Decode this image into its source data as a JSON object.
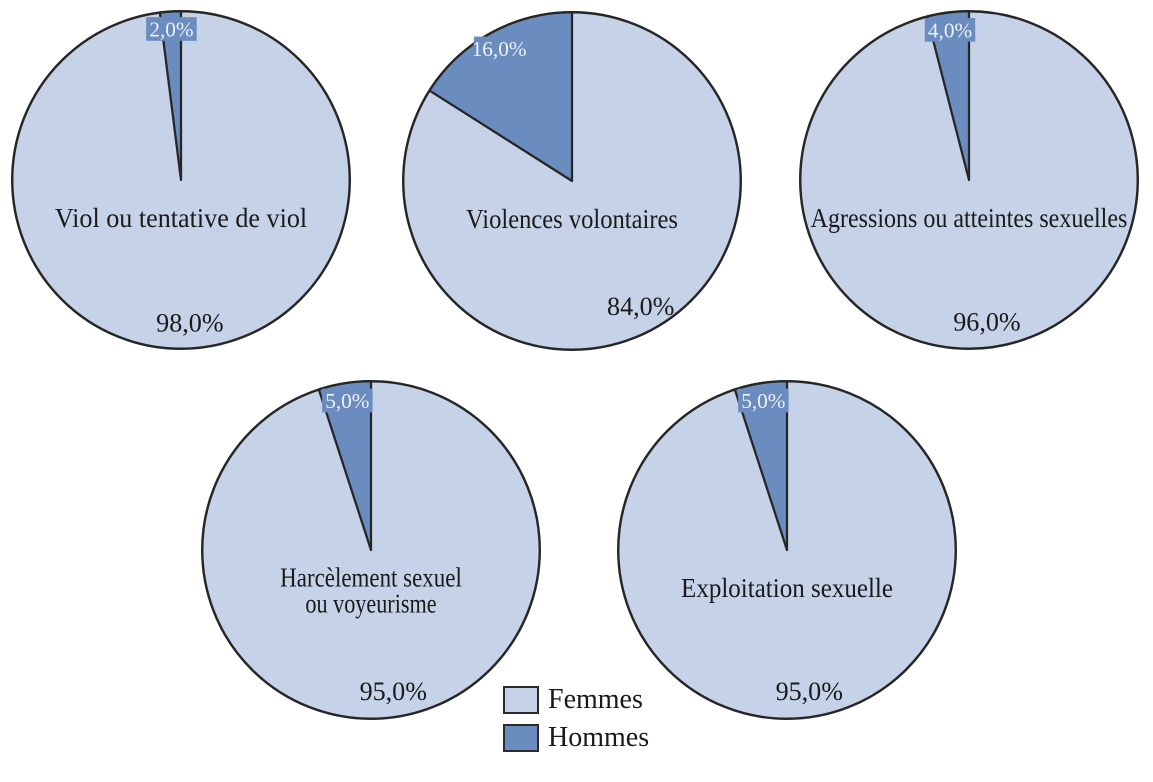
{
  "chart_data": {
    "type": "pie",
    "layout": "grid of 5 pies (3 top, 2 bottom), legend bottom-center",
    "colors": {
      "femmes_fill": "#c5d2e8",
      "hommes_fill": "#6b8cbe",
      "outline": "#262626",
      "value_text": "#1a1a1a",
      "small_label_text": "#eef2f9"
    },
    "legend": {
      "position": "bottom-center",
      "items": [
        {
          "label": "Femmes",
          "color": "#c5d2e8"
        },
        {
          "label": "Hommes",
          "color": "#6b8cbe"
        }
      ]
    },
    "pies": [
      {
        "title": "Viol ou tentative de viol",
        "title_lines": [
          "Viol ou tentative de viol"
        ],
        "series": [
          {
            "name": "Femmes",
            "value": 98.0,
            "label": "98,0%"
          },
          {
            "name": "Hommes",
            "value": 2.0,
            "label": "2,0%"
          }
        ]
      },
      {
        "title": "Violences volontaires",
        "title_lines": [
          "Violences volontaires"
        ],
        "series": [
          {
            "name": "Femmes",
            "value": 84.0,
            "label": "84,0%"
          },
          {
            "name": "Hommes",
            "value": 16.0,
            "label": "16,0%"
          }
        ]
      },
      {
        "title": "Agressions ou atteintes sexuelles",
        "title_lines": [
          "Agressions ou atteintes sexuelles"
        ],
        "series": [
          {
            "name": "Femmes",
            "value": 96.0,
            "label": "96,0%"
          },
          {
            "name": "Hommes",
            "value": 4.0,
            "label": "4,0%"
          }
        ]
      },
      {
        "title": "Harcèlement sexuel ou voyeurisme",
        "title_lines": [
          "Harcèlement sexuel",
          "ou voyeurisme"
        ],
        "series": [
          {
            "name": "Femmes",
            "value": 95.0,
            "label": "95,0%"
          },
          {
            "name": "Hommes",
            "value": 5.0,
            "label": "5,0%"
          }
        ]
      },
      {
        "title": "Exploitation sexuelle",
        "title_lines": [
          "Exploitation sexuelle"
        ],
        "series": [
          {
            "name": "Femmes",
            "value": 95.0,
            "label": "95,0%"
          },
          {
            "name": "Hommes",
            "value": 5.0,
            "label": "5,0%"
          }
        ]
      }
    ]
  }
}
